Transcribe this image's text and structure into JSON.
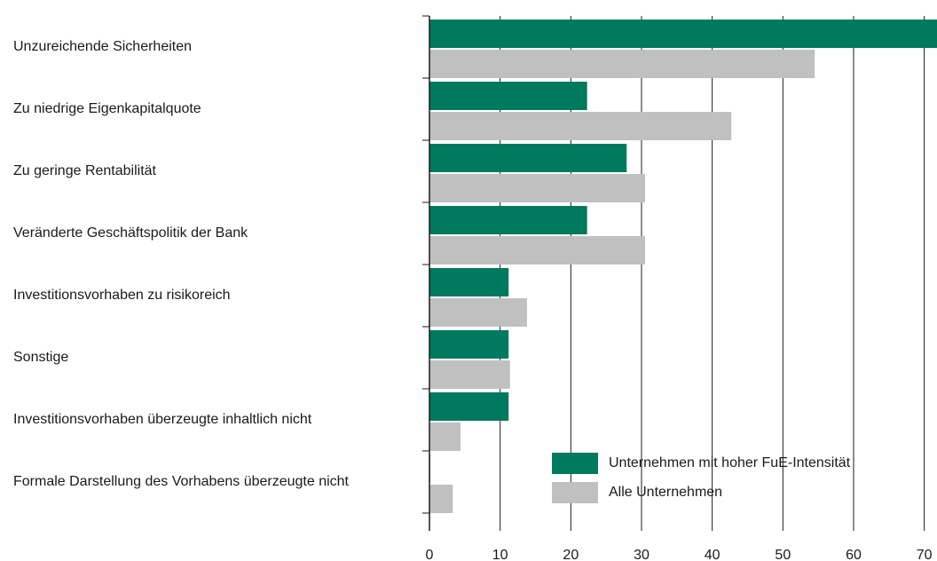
{
  "chart_data": {
    "type": "bar",
    "orientation": "horizontal",
    "categories": [
      "Unzureichende Sicherheiten",
      "Zu niedrige Eigenkapitalquote",
      "Zu geringe Rentabilität",
      "Veränderte Geschäftspolitik der Bank",
      "Investitionsvorhaben zu risikoreich",
      "Sonstige",
      "Investitionsvorhaben überzeugte inhaltlich nicht",
      "Formale Darstellung des Vorhabens überzeugte nicht"
    ],
    "series": [
      {
        "name": "Unternehmen mit hoher FuE-Intensität",
        "color": "#007a5e",
        "values": [
          71.8,
          22.3,
          27.9,
          22.3,
          11.2,
          11.2,
          11.2,
          0.1
        ]
      },
      {
        "name": "Alle Unternehmen",
        "color": "#c0c0c0",
        "values": [
          54.5,
          42.7,
          30.5,
          30.5,
          13.8,
          11.4,
          4.4,
          3.3
        ]
      }
    ],
    "xlim": [
      0,
      71.8
    ],
    "xticks": [
      0,
      10,
      20,
      30,
      40,
      50,
      60,
      70
    ],
    "grid": true,
    "legend": "lower right"
  }
}
